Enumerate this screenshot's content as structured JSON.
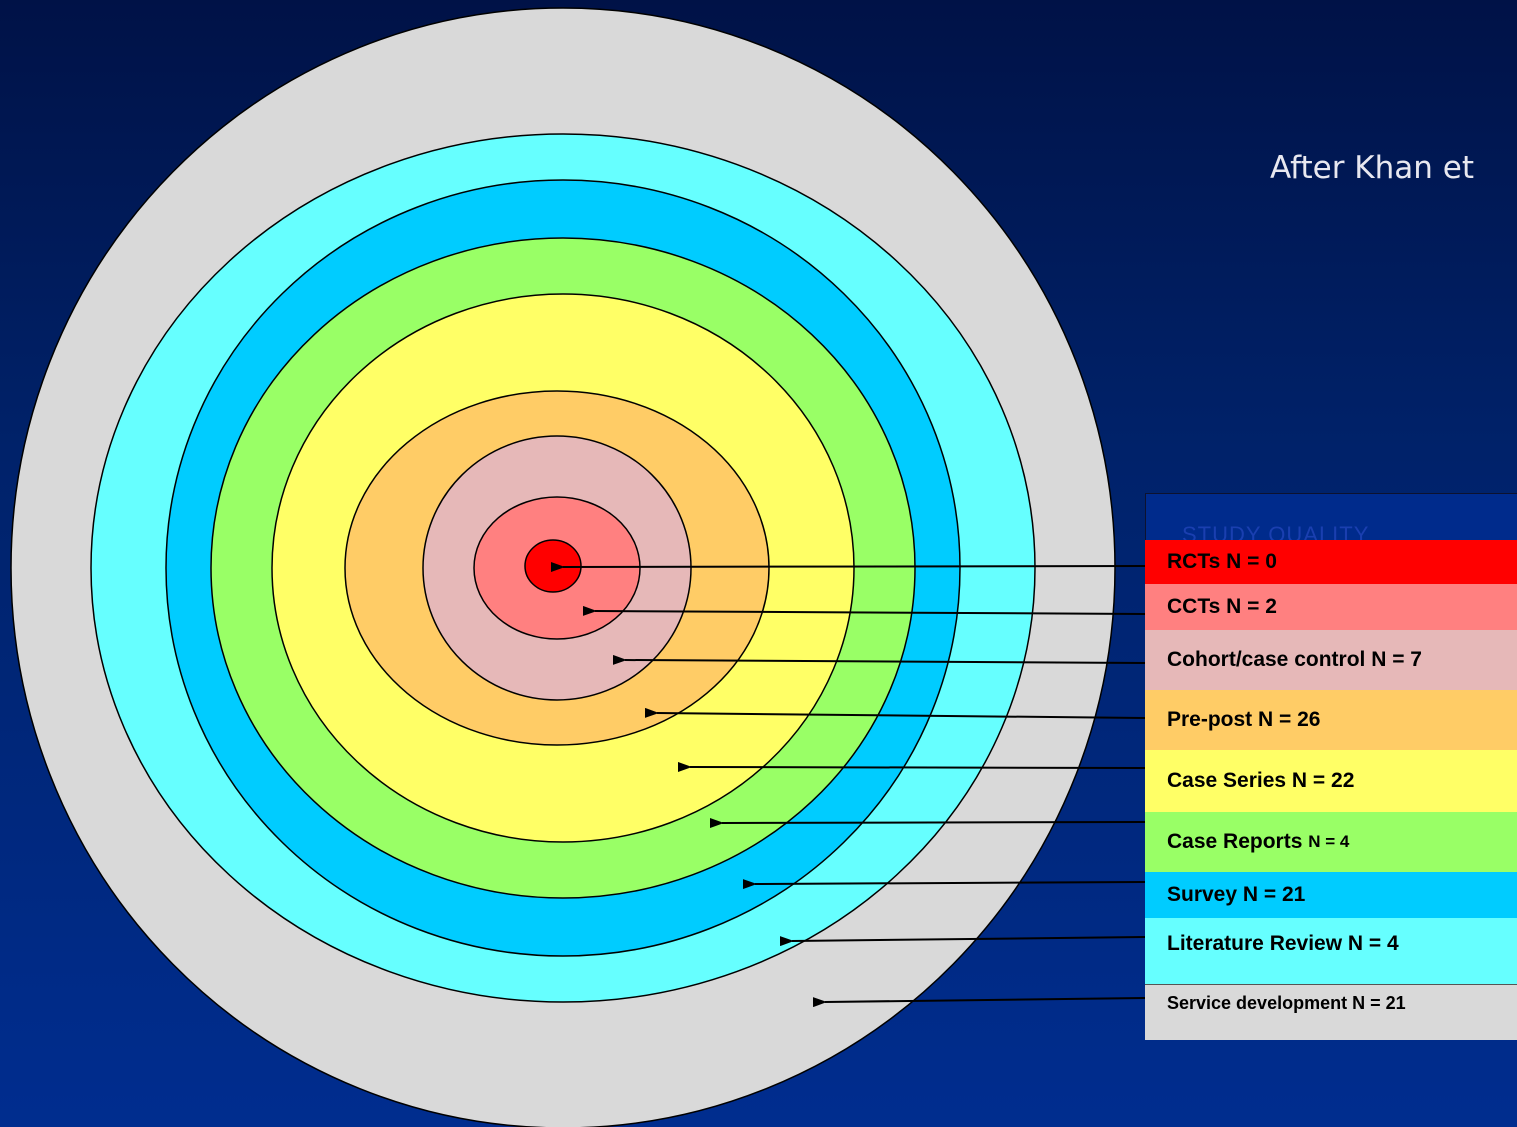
{
  "attribution": "After Khan et",
  "legend_heading": "STUDY QUALITY",
  "categories": [
    {
      "label": "RCTs  N = 0",
      "color": "#ff0000"
    },
    {
      "label": "CCTs  N = 2",
      "color": "#ff8080"
    },
    {
      "label": "Cohort/case control  N = 7",
      "color": "#e6b8b8"
    },
    {
      "label": "Pre-post N = 26",
      "color": "#ffcc66"
    },
    {
      "label": "Case Series N = 22",
      "color": "#ffff66"
    },
    {
      "label": "Case Reports",
      "label_suffix": "N = 4",
      "color": "#99ff66"
    },
    {
      "label": "Survey N = 21",
      "color": "#00ccff"
    },
    {
      "label": "Literature Review N = 4",
      "color": "#66ffff"
    },
    {
      "label": "Service development N = 21",
      "color": "#d9d9d9"
    }
  ],
  "colors": {
    "background_top": "#001247",
    "background_bottom": "#002d8f",
    "outline": "#000000"
  }
}
